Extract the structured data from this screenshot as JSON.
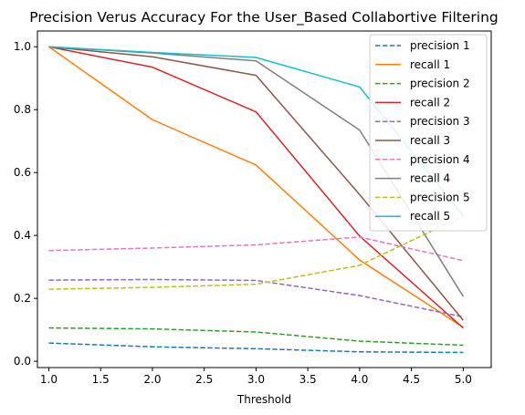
{
  "chart_data": {
    "type": "line",
    "title": "Precision Verus Accuracy For the User_Based Collabortive Filtering",
    "xlabel": "Threshold",
    "ylabel": "",
    "x": [
      1.0,
      2.0,
      3.0,
      4.0,
      5.0
    ],
    "xlim": [
      0.89,
      5.27
    ],
    "ylim": [
      -0.02,
      1.05
    ],
    "xticks": [
      "1.0",
      "1.5",
      "2.0",
      "2.5",
      "3.0",
      "3.5",
      "4.0",
      "4.5",
      "5.0"
    ],
    "yticks": [
      "0.0",
      "0.2",
      "0.4",
      "0.6",
      "0.8",
      "1.0"
    ],
    "grid": false,
    "legend_position": "top-right",
    "series": [
      {
        "name": "precision 1",
        "style": "dashed",
        "color": "#1f77b4",
        "values": [
          0.058,
          0.046,
          0.04,
          0.03,
          0.028
        ]
      },
      {
        "name": "recall 1",
        "style": "solid",
        "color": "#ff7f0e",
        "values": [
          1.0,
          0.768,
          0.624,
          0.322,
          0.108
        ]
      },
      {
        "name": "precision 2",
        "style": "dashed",
        "color": "#2ca02c",
        "values": [
          0.106,
          0.103,
          0.093,
          0.064,
          0.051
        ]
      },
      {
        "name": "recall 2",
        "style": "solid",
        "color": "#d62728",
        "values": [
          1.0,
          0.935,
          0.793,
          0.398,
          0.106
        ]
      },
      {
        "name": "precision 3",
        "style": "dashed",
        "color": "#9467bd",
        "values": [
          0.258,
          0.26,
          0.257,
          0.209,
          0.141
        ]
      },
      {
        "name": "recall 3",
        "style": "solid",
        "color": "#8c564b",
        "values": [
          1.0,
          0.968,
          0.909,
          0.53,
          0.13
        ]
      },
      {
        "name": "precision 4",
        "style": "dashed",
        "color": "#e377c2",
        "values": [
          0.352,
          0.36,
          0.37,
          0.395,
          0.32
        ]
      },
      {
        "name": "recall 4",
        "style": "solid",
        "color": "#7f7f7f",
        "values": [
          1.0,
          0.98,
          0.955,
          0.735,
          0.206
        ]
      },
      {
        "name": "precision 5",
        "style": "dashed",
        "color": "#bcbd22",
        "values": [
          0.229,
          0.235,
          0.245,
          0.305,
          0.462
        ]
      },
      {
        "name": "recall 5",
        "style": "solid",
        "color": "#17becf",
        "values": [
          1.0,
          0.982,
          0.966,
          0.872,
          0.462
        ]
      }
    ]
  }
}
